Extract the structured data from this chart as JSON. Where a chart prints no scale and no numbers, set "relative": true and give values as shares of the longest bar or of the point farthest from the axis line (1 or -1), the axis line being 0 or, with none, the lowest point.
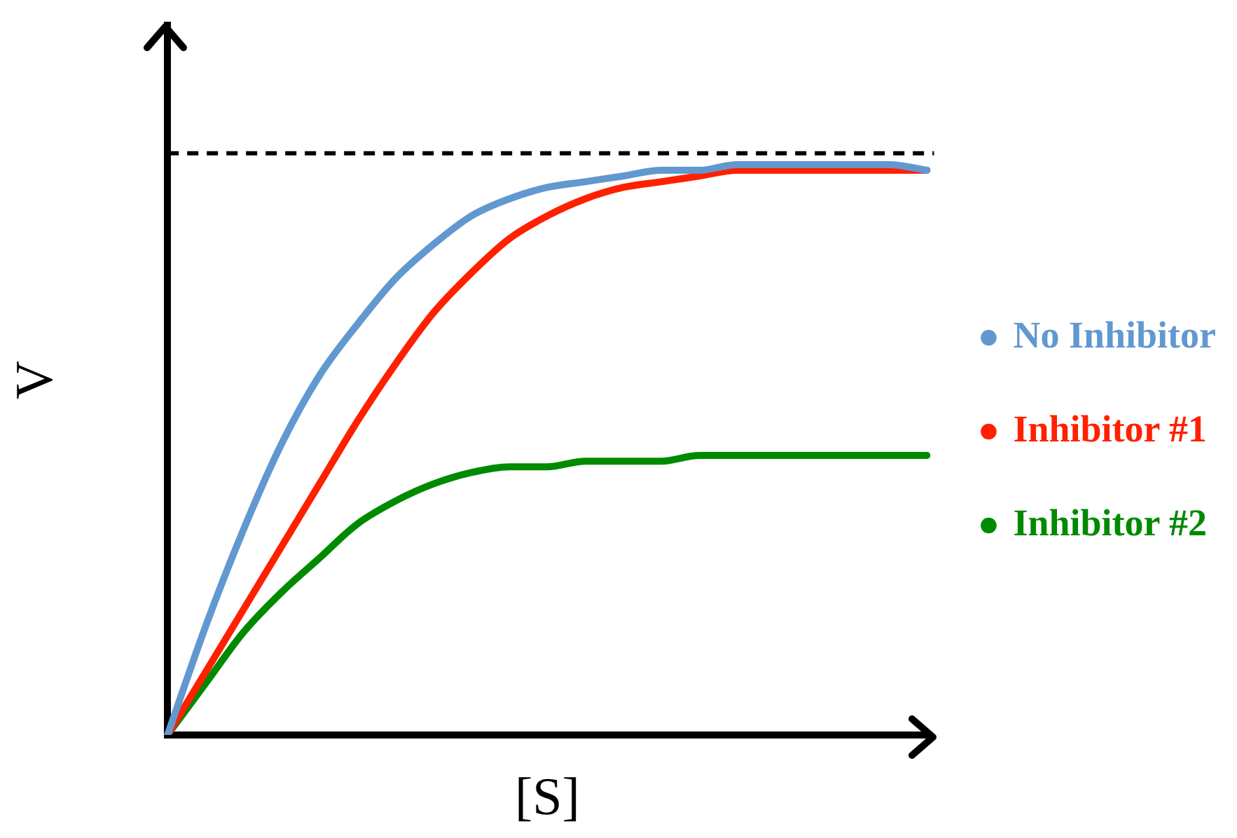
{
  "chart_data": {
    "type": "line",
    "relative": true,
    "xlabel": "[S]",
    "ylabel": "V",
    "legend": "right",
    "marker": "none",
    "line_style": "solid",
    "grid": false,
    "categories": [
      null,
      null,
      null,
      null,
      null,
      null,
      null,
      null,
      null,
      null,
      null,
      null,
      null,
      null,
      null,
      null,
      null,
      null,
      null,
      null,
      null
    ],
    "series": [
      {
        "name": "No Inhibitor",
        "color": "#6198d0",
        "values": [
          0,
          0.19,
          0.36,
          0.51,
          0.63,
          0.72,
          0.8,
          0.86,
          0.91,
          0.94,
          0.96,
          0.97,
          0.98,
          0.99,
          0.99,
          1,
          1,
          1,
          1,
          1,
          0.99
        ]
      },
      {
        "name": "Inhibitor #1",
        "color": "#ff2000",
        "values": [
          0,
          0.11,
          0.22,
          0.33,
          0.44,
          0.55,
          0.65,
          0.74,
          0.81,
          0.87,
          0.91,
          0.94,
          0.96,
          0.97,
          0.98,
          0.99,
          0.99,
          0.99,
          0.99,
          0.99,
          0.99
        ]
      },
      {
        "name": "Inhibitor #2",
        "color": "#008a00",
        "values": [
          0,
          0.09,
          0.18,
          0.25,
          0.31,
          0.37,
          0.41,
          0.44,
          0.46,
          0.47,
          0.47,
          0.48,
          0.48,
          0.48,
          0.49,
          0.49,
          0.49,
          0.49,
          0.49,
          0.49,
          0.49
        ]
      }
    ],
    "ref_lines": [
      {
        "axis": "y",
        "value": 1.02,
        "color": "#000000",
        "line_style": "dashed"
      }
    ]
  }
}
